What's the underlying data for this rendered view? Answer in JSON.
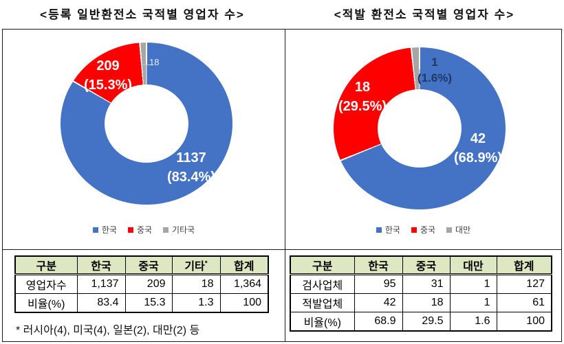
{
  "page": {
    "left_title": "<등록 일반환전소 국적별 영업자 수>",
    "right_title": "<적발 환전소 국적별 영업자 수>"
  },
  "chart_data": [
    {
      "type": "pie",
      "subtype": "donut",
      "title": "<등록 일반환전소 국적별 영업자 수>",
      "categories": [
        "한국",
        "중국",
        "기타국"
      ],
      "values": [
        1137,
        209,
        18
      ],
      "percents": [
        83.4,
        15.3,
        1.3
      ],
      "total": 1364,
      "colors": [
        "#4472C4",
        "#FF0000",
        "#A6A6A6"
      ],
      "start_angle_deg": 0,
      "direction": "clockwise",
      "legend_position": "bottom",
      "slice_labels": [
        {
          "line1": "1137",
          "line2": "(83.4%)"
        },
        {
          "line1": "209",
          "line2": "(15.3%)"
        },
        {
          "line1": "18",
          "line2": ""
        }
      ]
    },
    {
      "type": "pie",
      "subtype": "donut",
      "title": "<적발 환전소 국적별 영업자 수>",
      "categories": [
        "한국",
        "중국",
        "대만"
      ],
      "values": [
        42,
        18,
        1
      ],
      "percents": [
        68.9,
        29.5,
        1.6
      ],
      "total": 61,
      "colors": [
        "#4472C4",
        "#FF0000",
        "#A6A6A6"
      ],
      "start_angle_deg": 0,
      "direction": "clockwise",
      "legend_position": "bottom",
      "slice_labels": [
        {
          "line1": "42",
          "line2": "(68.9%)"
        },
        {
          "line1": "18",
          "line2": "(29.5%)"
        },
        {
          "line1": "1",
          "line2": "(1.6%)"
        }
      ]
    }
  ],
  "tables": [
    {
      "columns": [
        "구분",
        "한국",
        "중국",
        "기타",
        "합계"
      ],
      "note_marker": "*",
      "rows": [
        [
          "영업자수",
          "1,137",
          "209",
          "18",
          "1,364"
        ],
        [
          "비율(%)",
          "83.4",
          "15.3",
          "1.3",
          "100"
        ]
      ],
      "footnote": "* 러시아(4), 미국(4), 일본(2), 대만(2) 등",
      "header_bg": "#DDE8C3"
    },
    {
      "columns": [
        "구분",
        "한국",
        "중국",
        "대만",
        "합계"
      ],
      "rows": [
        [
          "검사업체",
          "95",
          "31",
          "1",
          "127"
        ],
        [
          "적발업체",
          "42",
          "18",
          "1",
          "61"
        ],
        [
          "비율(%)",
          "68.9",
          "29.5",
          "1.6",
          "100"
        ]
      ],
      "header_bg": "#DDE8C3"
    }
  ]
}
